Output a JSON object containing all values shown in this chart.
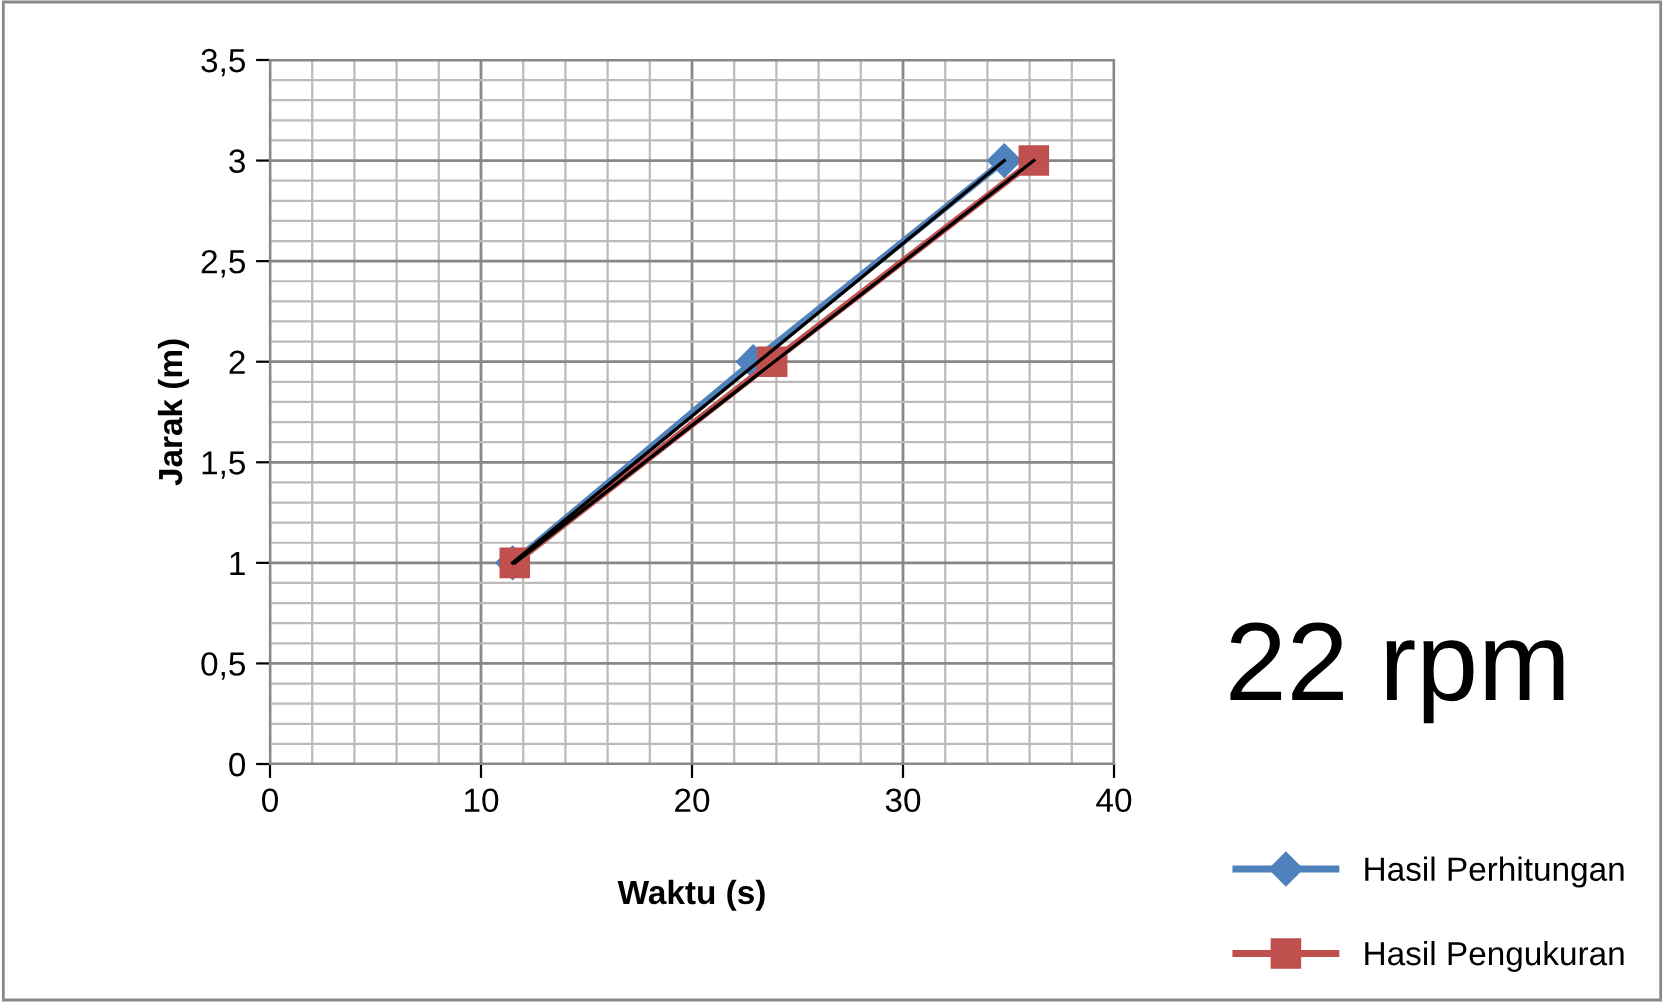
{
  "chart_data": {
    "type": "line",
    "xlabel": "Waktu (s)",
    "ylabel": "Jarak (m)",
    "series": [
      {
        "name": "Hasil Perhitungan",
        "color": "#4f81bd",
        "marker": "diamond",
        "x": [
          11.5,
          22.9,
          34.8
        ],
        "values": [
          1,
          2,
          3
        ]
      },
      {
        "name": "Hasil Pengukuran",
        "color": "#c0504d",
        "marker": "square",
        "x": [
          11.6,
          23.8,
          36.2
        ],
        "values": [
          1,
          2,
          3
        ]
      },
      {
        "type": "line",
        "color": "#000000",
        "marker": "none",
        "x": [
          11.5,
          34.8
        ],
        "values": [
          1,
          3
        ]
      },
      {
        "type": "line",
        "color": "#000000",
        "marker": "none",
        "x": [
          11.6,
          36.2
        ],
        "values": [
          1,
          3
        ]
      }
    ],
    "xlim": [
      0,
      40
    ],
    "xticks": [
      0,
      10,
      20,
      30,
      40
    ],
    "ylim": [
      0,
      3.5
    ],
    "yticks": [
      0,
      {
        "value": 0.5,
        "label": "0,5"
      },
      1,
      {
        "value": 1.5,
        "label": "1,5"
      },
      2,
      {
        "value": 2.5,
        "label": "2,5"
      },
      3,
      {
        "value": 3.5,
        "label": "3,5"
      }
    ],
    "grid": true,
    "legend": "right",
    "annotations": [
      "22 rpm"
    ]
  }
}
